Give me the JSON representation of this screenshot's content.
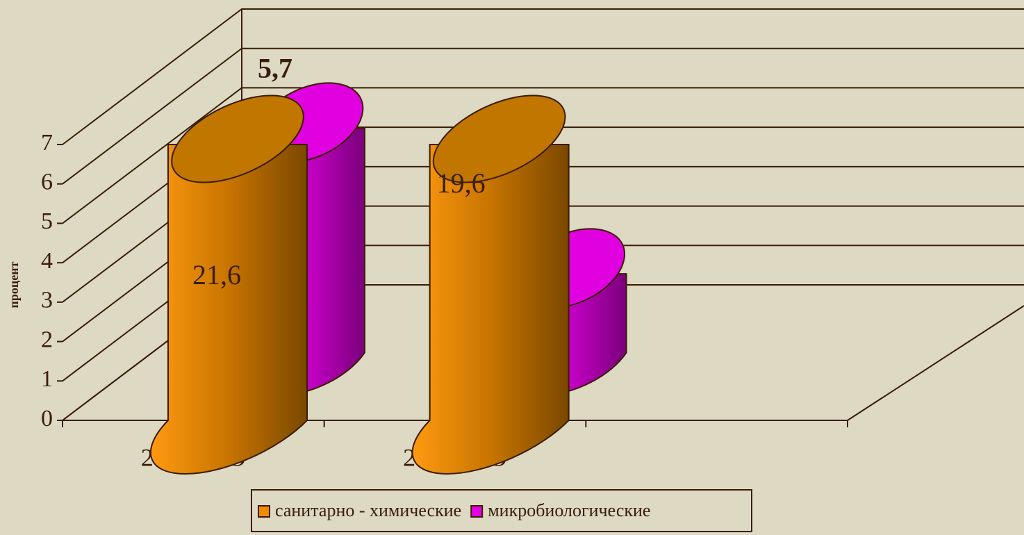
{
  "chart_data": {
    "type": "bar3d",
    "categories": [
      "2010г. ЛО",
      "2011 г.ЛО"
    ],
    "y_label": "процент",
    "ylim": [
      0,
      7
    ],
    "yticks": [
      0,
      1,
      2,
      3,
      4,
      5,
      6,
      7
    ],
    "grid": true,
    "legend": "bottom",
    "series": [
      {
        "name": "санитарно - химические",
        "color": "#f08c00",
        "values": [
          21.6,
          19.6
        ],
        "value_labels": [
          "21,6",
          "19,6"
        ]
      },
      {
        "name": "микробиологические",
        "color": "#e600e6",
        "values": [
          5.7,
          2
        ],
        "value_labels": [
          "5,7",
          "2"
        ]
      }
    ]
  }
}
